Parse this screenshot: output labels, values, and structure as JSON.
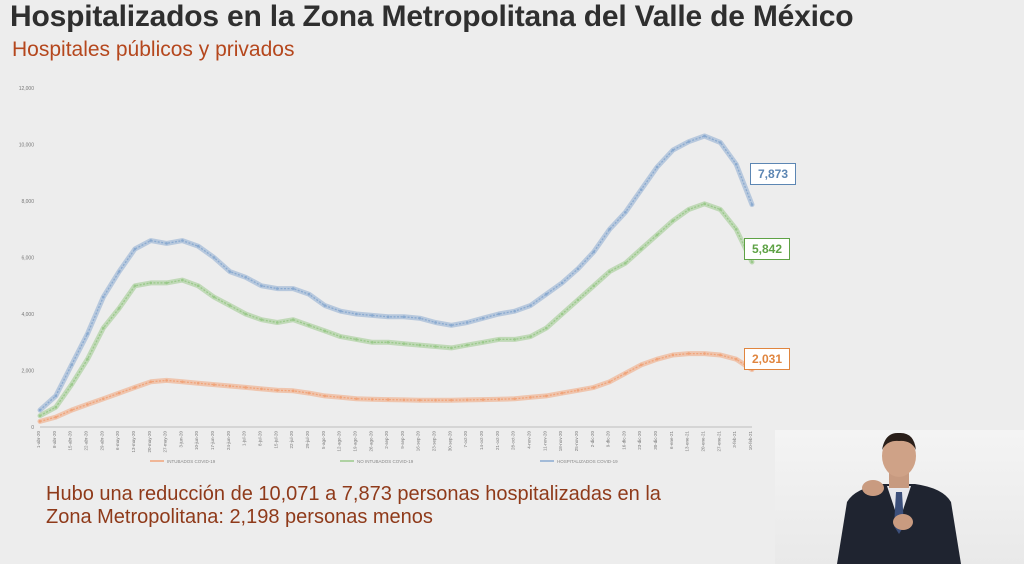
{
  "header": {
    "title": "Hospitalizados en la Zona Metropolitana del Valle de México",
    "subtitle": "Hospitales públicos y privados"
  },
  "caption": "Hubo una reducción de 10,071 a 7,873 personas hospitalizadas en la Zona Metropolitana: 2,198 personas menos",
  "chart_data": {
    "type": "line",
    "ylim": [
      0,
      12000
    ],
    "yticks": [
      "0",
      "2,000",
      "4,000",
      "6,000",
      "8,000",
      "10,000",
      "12,000"
    ],
    "ytick_values": [
      0,
      2000,
      4000,
      6000,
      8000,
      10000,
      12000
    ],
    "x": [
      "1-abr-20",
      "8-abr-20",
      "15-abr-20",
      "22-abr-20",
      "29-abr-20",
      "6-may-20",
      "13-may-20",
      "20-may-20",
      "27-may-20",
      "3-jun-20",
      "10-jun-20",
      "17-jun-20",
      "24-jun-20",
      "1-jul-20",
      "8-jul-20",
      "15-jul-20",
      "22-jul-20",
      "29-jul-20",
      "5-ago-20",
      "12-ago-20",
      "19-ago-20",
      "26-ago-20",
      "2-sep-20",
      "9-sep-20",
      "16-sep-20",
      "23-sep-20",
      "30-sep-20",
      "7-oct-20",
      "14-oct-20",
      "21-oct-20",
      "28-oct-20",
      "4-nov-20",
      "11-nov-20",
      "18-nov-20",
      "25-nov-20",
      "2-dic-20",
      "9-dic-20",
      "16-dic-20",
      "23-dic-20",
      "30-dic-20",
      "6-ene-21",
      "13-ene-21",
      "20-ene-21",
      "27-ene-21",
      "3-feb-21",
      "10-feb-21"
    ],
    "series": [
      {
        "name": "INTUBADOS COVID-19",
        "color": "#f0a47a",
        "values": [
          200,
          350,
          600,
          800,
          1000,
          1200,
          1400,
          1600,
          1650,
          1600,
          1550,
          1500,
          1450,
          1400,
          1350,
          1300,
          1280,
          1200,
          1100,
          1050,
          1000,
          980,
          970,
          960,
          950,
          950,
          950,
          960,
          970,
          980,
          1000,
          1050,
          1100,
          1200,
          1300,
          1400,
          1600,
          1900,
          2200,
          2400,
          2550,
          2600,
          2600,
          2550,
          2400,
          2031
        ]
      },
      {
        "name": "NO INTUBADOS COVID-19",
        "color": "#9ac98a",
        "values": [
          400,
          700,
          1500,
          2400,
          3500,
          4200,
          5000,
          5100,
          5100,
          5200,
          5000,
          4600,
          4300,
          4000,
          3800,
          3700,
          3800,
          3600,
          3400,
          3200,
          3100,
          3000,
          3000,
          2950,
          2900,
          2850,
          2800,
          2900,
          3000,
          3100,
          3100,
          3200,
          3500,
          4000,
          4500,
          5000,
          5500,
          5800,
          6300,
          6800,
          7300,
          7700,
          7900,
          7700,
          7000,
          5842
        ]
      },
      {
        "name": "HOSPITALIZADOS COVID-19",
        "color": "#8aaad0",
        "values": [
          600,
          1100,
          2200,
          3300,
          4600,
          5500,
          6300,
          6600,
          6500,
          6600,
          6400,
          6000,
          5500,
          5300,
          5000,
          4900,
          4900,
          4700,
          4300,
          4100,
          4000,
          3950,
          3900,
          3900,
          3850,
          3700,
          3600,
          3700,
          3850,
          4000,
          4100,
          4300,
          4700,
          5100,
          5600,
          6200,
          7000,
          7600,
          8400,
          9200,
          9800,
          10100,
          10300,
          10071,
          9300,
          7873
        ]
      }
    ],
    "annotations": [
      {
        "series": 2,
        "text": "7,873",
        "color": "#5c86b3"
      },
      {
        "series": 1,
        "text": "5,842",
        "color": "#5ea245"
      },
      {
        "series": 0,
        "text": "2,031",
        "color": "#e0853e"
      }
    ]
  }
}
